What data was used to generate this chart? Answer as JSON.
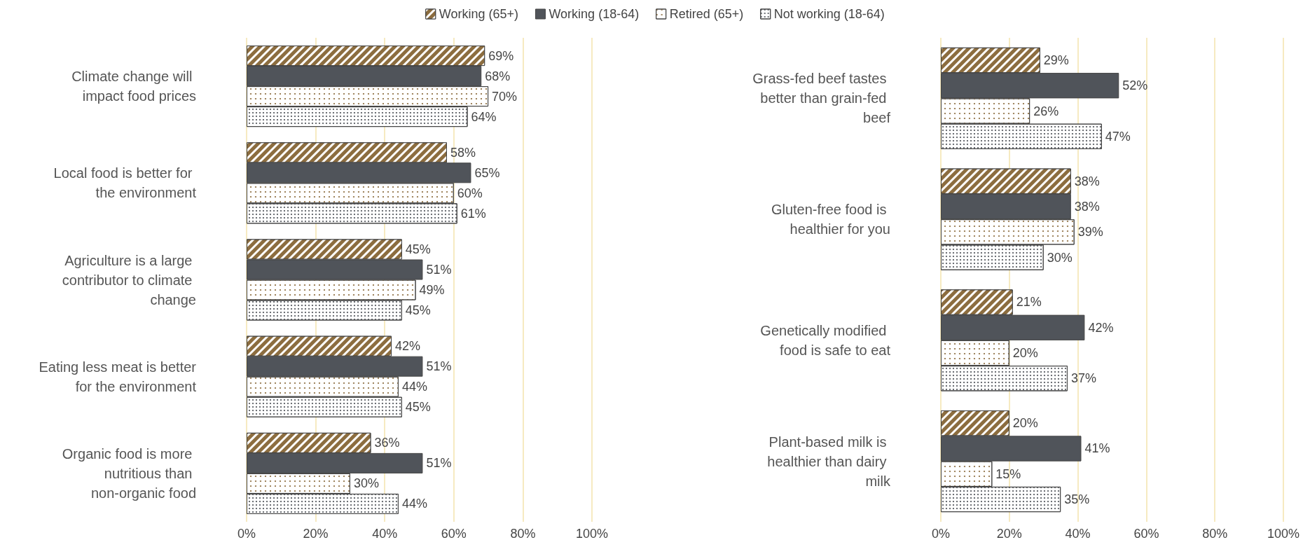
{
  "chart_data": [
    {
      "type": "bar",
      "orientation": "horizontal",
      "legend": "top",
      "grid": "x",
      "categories": [
        "Climate change will impact food prices",
        "Local food is better for the environment",
        "Agriculture is a large contributor to climate change",
        "Eating less meat is better for the environment",
        "Organic food is more nutritious than non-organic food"
      ],
      "series": [
        {
          "name": "Working (65+)",
          "color": "#8c6d3f",
          "values": [
            69,
            58,
            45,
            42,
            36
          ],
          "value_labels": [
            "69%",
            "58%",
            "45%",
            "42%",
            "36%"
          ]
        },
        {
          "name": "Working (18-64)",
          "color": "#50545a",
          "values": [
            68,
            65,
            51,
            51,
            51
          ],
          "value_labels": [
            "68%",
            "65%",
            "51%",
            "51%",
            "51%"
          ]
        },
        {
          "name": "Retired (65+)",
          "color": "#ffffff",
          "values": [
            70,
            60,
            49,
            44,
            30
          ],
          "value_labels": [
            "70%",
            "60%",
            "49%",
            "44%",
            "30%"
          ]
        },
        {
          "name": "Not working (18-64)",
          "color": "#ffffff",
          "values": [
            64,
            61,
            45,
            45,
            44
          ],
          "value_labels": [
            "64%",
            "61%",
            "45%",
            "45%",
            "44%"
          ]
        }
      ],
      "xlim": [
        0,
        100
      ],
      "xticks": [
        {
          "value": 0,
          "label": "0%"
        },
        {
          "value": 20,
          "label": "20%"
        },
        {
          "value": 40,
          "label": "40%"
        },
        {
          "value": 60,
          "label": "60%"
        },
        {
          "value": 80,
          "label": "80%"
        },
        {
          "value": 100,
          "label": "100%"
        }
      ]
    },
    {
      "type": "bar",
      "orientation": "horizontal",
      "grid": "x",
      "categories": [
        "Grass-fed beef tastes better than grain-fed beef",
        "Gluten-free food is healthier for you",
        "Genetically modified food is safe to eat",
        "Plant-based milk is healthier than dairy milk"
      ],
      "series": [
        {
          "color": "#8c6d3f",
          "values": [
            29,
            38,
            21,
            20
          ],
          "value_labels": [
            "29%",
            "38%",
            "21%",
            "20%"
          ]
        },
        {
          "color": "#50545a",
          "values": [
            52,
            38,
            42,
            41
          ],
          "value_labels": [
            "52%",
            "38%",
            "42%",
            "41%"
          ]
        },
        {
          "color": "#ffffff",
          "values": [
            26,
            39,
            20,
            15
          ],
          "value_labels": [
            "26%",
            "39%",
            "20%",
            "15%"
          ]
        },
        {
          "color": "#ffffff",
          "values": [
            47,
            30,
            37,
            35
          ],
          "value_labels": [
            "47%",
            "30%",
            "37%",
            "35%"
          ]
        }
      ],
      "xlim": [
        0,
        100
      ],
      "xticks": [
        {
          "value": 0,
          "label": "0%"
        },
        {
          "value": 20,
          "label": "20%"
        },
        {
          "value": 40,
          "label": "40%"
        },
        {
          "value": 60,
          "label": "60%"
        },
        {
          "value": 80,
          "label": "80%"
        },
        {
          "value": 100,
          "label": "100%"
        }
      ]
    }
  ]
}
